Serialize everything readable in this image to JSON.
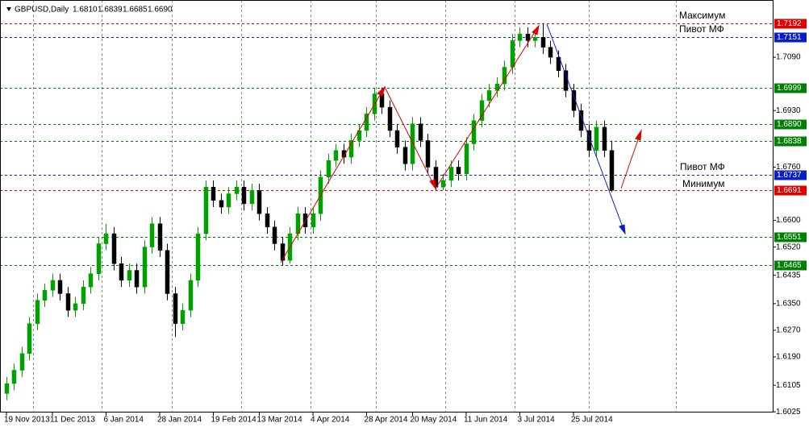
{
  "chart_data": {
    "type": "candlestick",
    "symbol": "GBPUSD,Daily",
    "header_values": [
      {
        "value": 1.681,
        "label": "1.6810"
      },
      {
        "value": 1.6839,
        "label": "1.6839"
      },
      {
        "value": 1.6685,
        "label": "1.6685"
      },
      {
        "value": 1.669,
        "label": "1.6690"
      }
    ],
    "up_color": "#00a000",
    "down_color": "#000000",
    "open": [
      1.608,
      1.611,
      1.615,
      1.62,
      1.629,
      1.636,
      1.639,
      1.642,
      1.638,
      1.633,
      1.635,
      1.64,
      1.644,
      1.653,
      1.656,
      1.647,
      1.642,
      1.645,
      1.64,
      1.652,
      1.659,
      1.651,
      1.638,
      1.629,
      1.633,
      1.642,
      1.656,
      1.67,
      1.666,
      1.664,
      1.668,
      1.67,
      1.665,
      1.669,
      1.662,
      1.658,
      1.653,
      1.648,
      1.656,
      1.662,
      1.658,
      1.662,
      1.673,
      1.678,
      1.681,
      1.679,
      1.684,
      1.687,
      1.692,
      1.698,
      1.694,
      1.687,
      1.682,
      1.677,
      1.689,
      1.684,
      1.676,
      1.67,
      1.672,
      1.676,
      1.674,
      1.683,
      1.69,
      1.696,
      1.699,
      1.701,
      1.706,
      1.714,
      1.716,
      1.714,
      1.715,
      1.712,
      1.709,
      1.705,
      1.699,
      1.693,
      1.687,
      1.681,
      1.688,
      1.681
    ],
    "high": [
      1.613,
      1.617,
      1.622,
      1.631,
      1.638,
      1.641,
      1.644,
      1.644,
      1.64,
      1.637,
      1.642,
      1.646,
      1.655,
      1.659,
      1.658,
      1.649,
      1.647,
      1.647,
      1.654,
      1.661,
      1.661,
      1.653,
      1.64,
      1.635,
      1.644,
      1.658,
      1.672,
      1.672,
      1.668,
      1.67,
      1.672,
      1.672,
      1.671,
      1.671,
      1.664,
      1.66,
      1.655,
      1.658,
      1.664,
      1.664,
      1.664,
      1.675,
      1.68,
      1.683,
      1.683,
      1.686,
      1.689,
      1.694,
      1.6999,
      1.6999,
      1.696,
      1.689,
      1.684,
      1.691,
      1.691,
      1.686,
      1.678,
      1.674,
      1.678,
      1.678,
      1.685,
      1.692,
      1.698,
      1.701,
      1.703,
      1.708,
      1.716,
      1.718,
      1.718,
      1.717,
      1.7192,
      1.714,
      1.711,
      1.707,
      1.701,
      1.695,
      1.689,
      1.69,
      1.69,
      1.6839
    ],
    "low": [
      1.606,
      1.609,
      1.613,
      1.618,
      1.627,
      1.634,
      1.637,
      1.636,
      1.631,
      1.631,
      1.633,
      1.638,
      1.642,
      1.651,
      1.645,
      1.64,
      1.64,
      1.638,
      1.638,
      1.65,
      1.649,
      1.636,
      1.625,
      1.627,
      1.631,
      1.64,
      1.654,
      1.664,
      1.662,
      1.662,
      1.666,
      1.663,
      1.663,
      1.66,
      1.656,
      1.651,
      1.6465,
      1.647,
      1.654,
      1.656,
      1.656,
      1.66,
      1.671,
      1.676,
      1.677,
      1.677,
      1.682,
      1.685,
      1.69,
      1.692,
      1.685,
      1.68,
      1.675,
      1.675,
      1.682,
      1.674,
      1.6691,
      1.6691,
      1.67,
      1.672,
      1.672,
      1.681,
      1.688,
      1.694,
      1.697,
      1.699,
      1.704,
      1.712,
      1.712,
      1.712,
      1.71,
      1.707,
      1.703,
      1.697,
      1.691,
      1.685,
      1.679,
      1.679,
      1.679,
      1.6685
    ],
    "close": [
      1.611,
      1.615,
      1.62,
      1.629,
      1.636,
      1.639,
      1.642,
      1.638,
      1.633,
      1.635,
      1.64,
      1.644,
      1.653,
      1.656,
      1.647,
      1.642,
      1.645,
      1.64,
      1.652,
      1.659,
      1.651,
      1.638,
      1.629,
      1.633,
      1.642,
      1.656,
      1.67,
      1.666,
      1.664,
      1.668,
      1.67,
      1.665,
      1.669,
      1.662,
      1.658,
      1.653,
      1.648,
      1.656,
      1.662,
      1.658,
      1.662,
      1.673,
      1.678,
      1.681,
      1.679,
      1.684,
      1.687,
      1.692,
      1.698,
      1.694,
      1.687,
      1.682,
      1.677,
      1.689,
      1.684,
      1.676,
      1.67,
      1.672,
      1.676,
      1.674,
      1.683,
      1.69,
      1.696,
      1.699,
      1.701,
      1.706,
      1.714,
      1.716,
      1.714,
      1.715,
      1.712,
      1.709,
      1.705,
      1.699,
      1.693,
      1.687,
      1.681,
      1.688,
      1.681,
      1.669
    ],
    "xlim": [
      -0.84,
      100
    ],
    "xticks": [
      {
        "value": 0,
        "label": "19 Nov 2013"
      },
      {
        "value": 6,
        "label": "11 Dec 2013"
      },
      {
        "value": 13,
        "label": "6 Jan 2014"
      },
      {
        "value": 20,
        "label": "28 Jan 2014"
      },
      {
        "value": 27,
        "label": "19 Feb 2014"
      },
      {
        "value": 33,
        "label": "13 Mar 2014"
      },
      {
        "value": 40,
        "label": "4 Apr 2014"
      },
      {
        "value": 47,
        "label": "28 Apr 2014"
      },
      {
        "value": 53,
        "label": "20 May 2014"
      },
      {
        "value": 60,
        "label": "11 Jun 2014"
      },
      {
        "value": 67,
        "label": "3 Jul 2014"
      },
      {
        "value": 74,
        "label": "25 Jul 2014"
      }
    ],
    "ylim": [
      1.6023,
      1.7262
    ],
    "yticks": [
      {
        "value": 1.709,
        "label": "1.7090"
      },
      {
        "value": 1.693,
        "label": "1.6930"
      },
      {
        "value": 1.676,
        "label": "1.6760"
      },
      {
        "value": 1.66,
        "label": "1.6600"
      },
      {
        "value": 1.652,
        "label": "1.6520"
      },
      1.6435,
      {
        "value": 1.635,
        "label": "1.6350"
      },
      {
        "value": 1.627,
        "label": "1.6270"
      },
      {
        "value": 1.619,
        "label": "1.6190"
      },
      1.6105,
      1.6025
    ],
    "levels": [
      {
        "value": 1.7192,
        "label": "1.7192",
        "color": "#e00000"
      },
      {
        "value": 1.7151,
        "label": "1.7151",
        "color": "#0a1ec8"
      },
      {
        "value": 1.6999,
        "label": "1.6999",
        "color": "#008000"
      },
      {
        "value": 1.689,
        "label": "1.6890",
        "color": "#008000"
      },
      {
        "value": 1.6838,
        "label": "1.6838",
        "color": "#008000"
      },
      {
        "value": 1.6737,
        "label": "1.6737",
        "color": "#0a1ec8"
      },
      {
        "value": 1.6691,
        "label": "1.6691",
        "color": "#e00000"
      },
      {
        "value": 1.6551,
        "label": "1.6551",
        "color": "#008000"
      },
      {
        "value": 1.6465,
        "label": "1.6465",
        "color": "#008000"
      }
    ],
    "annotations": [
      "Максимум",
      "Пивот МФ",
      "Пивот МФ",
      "Минимум"
    ]
  }
}
